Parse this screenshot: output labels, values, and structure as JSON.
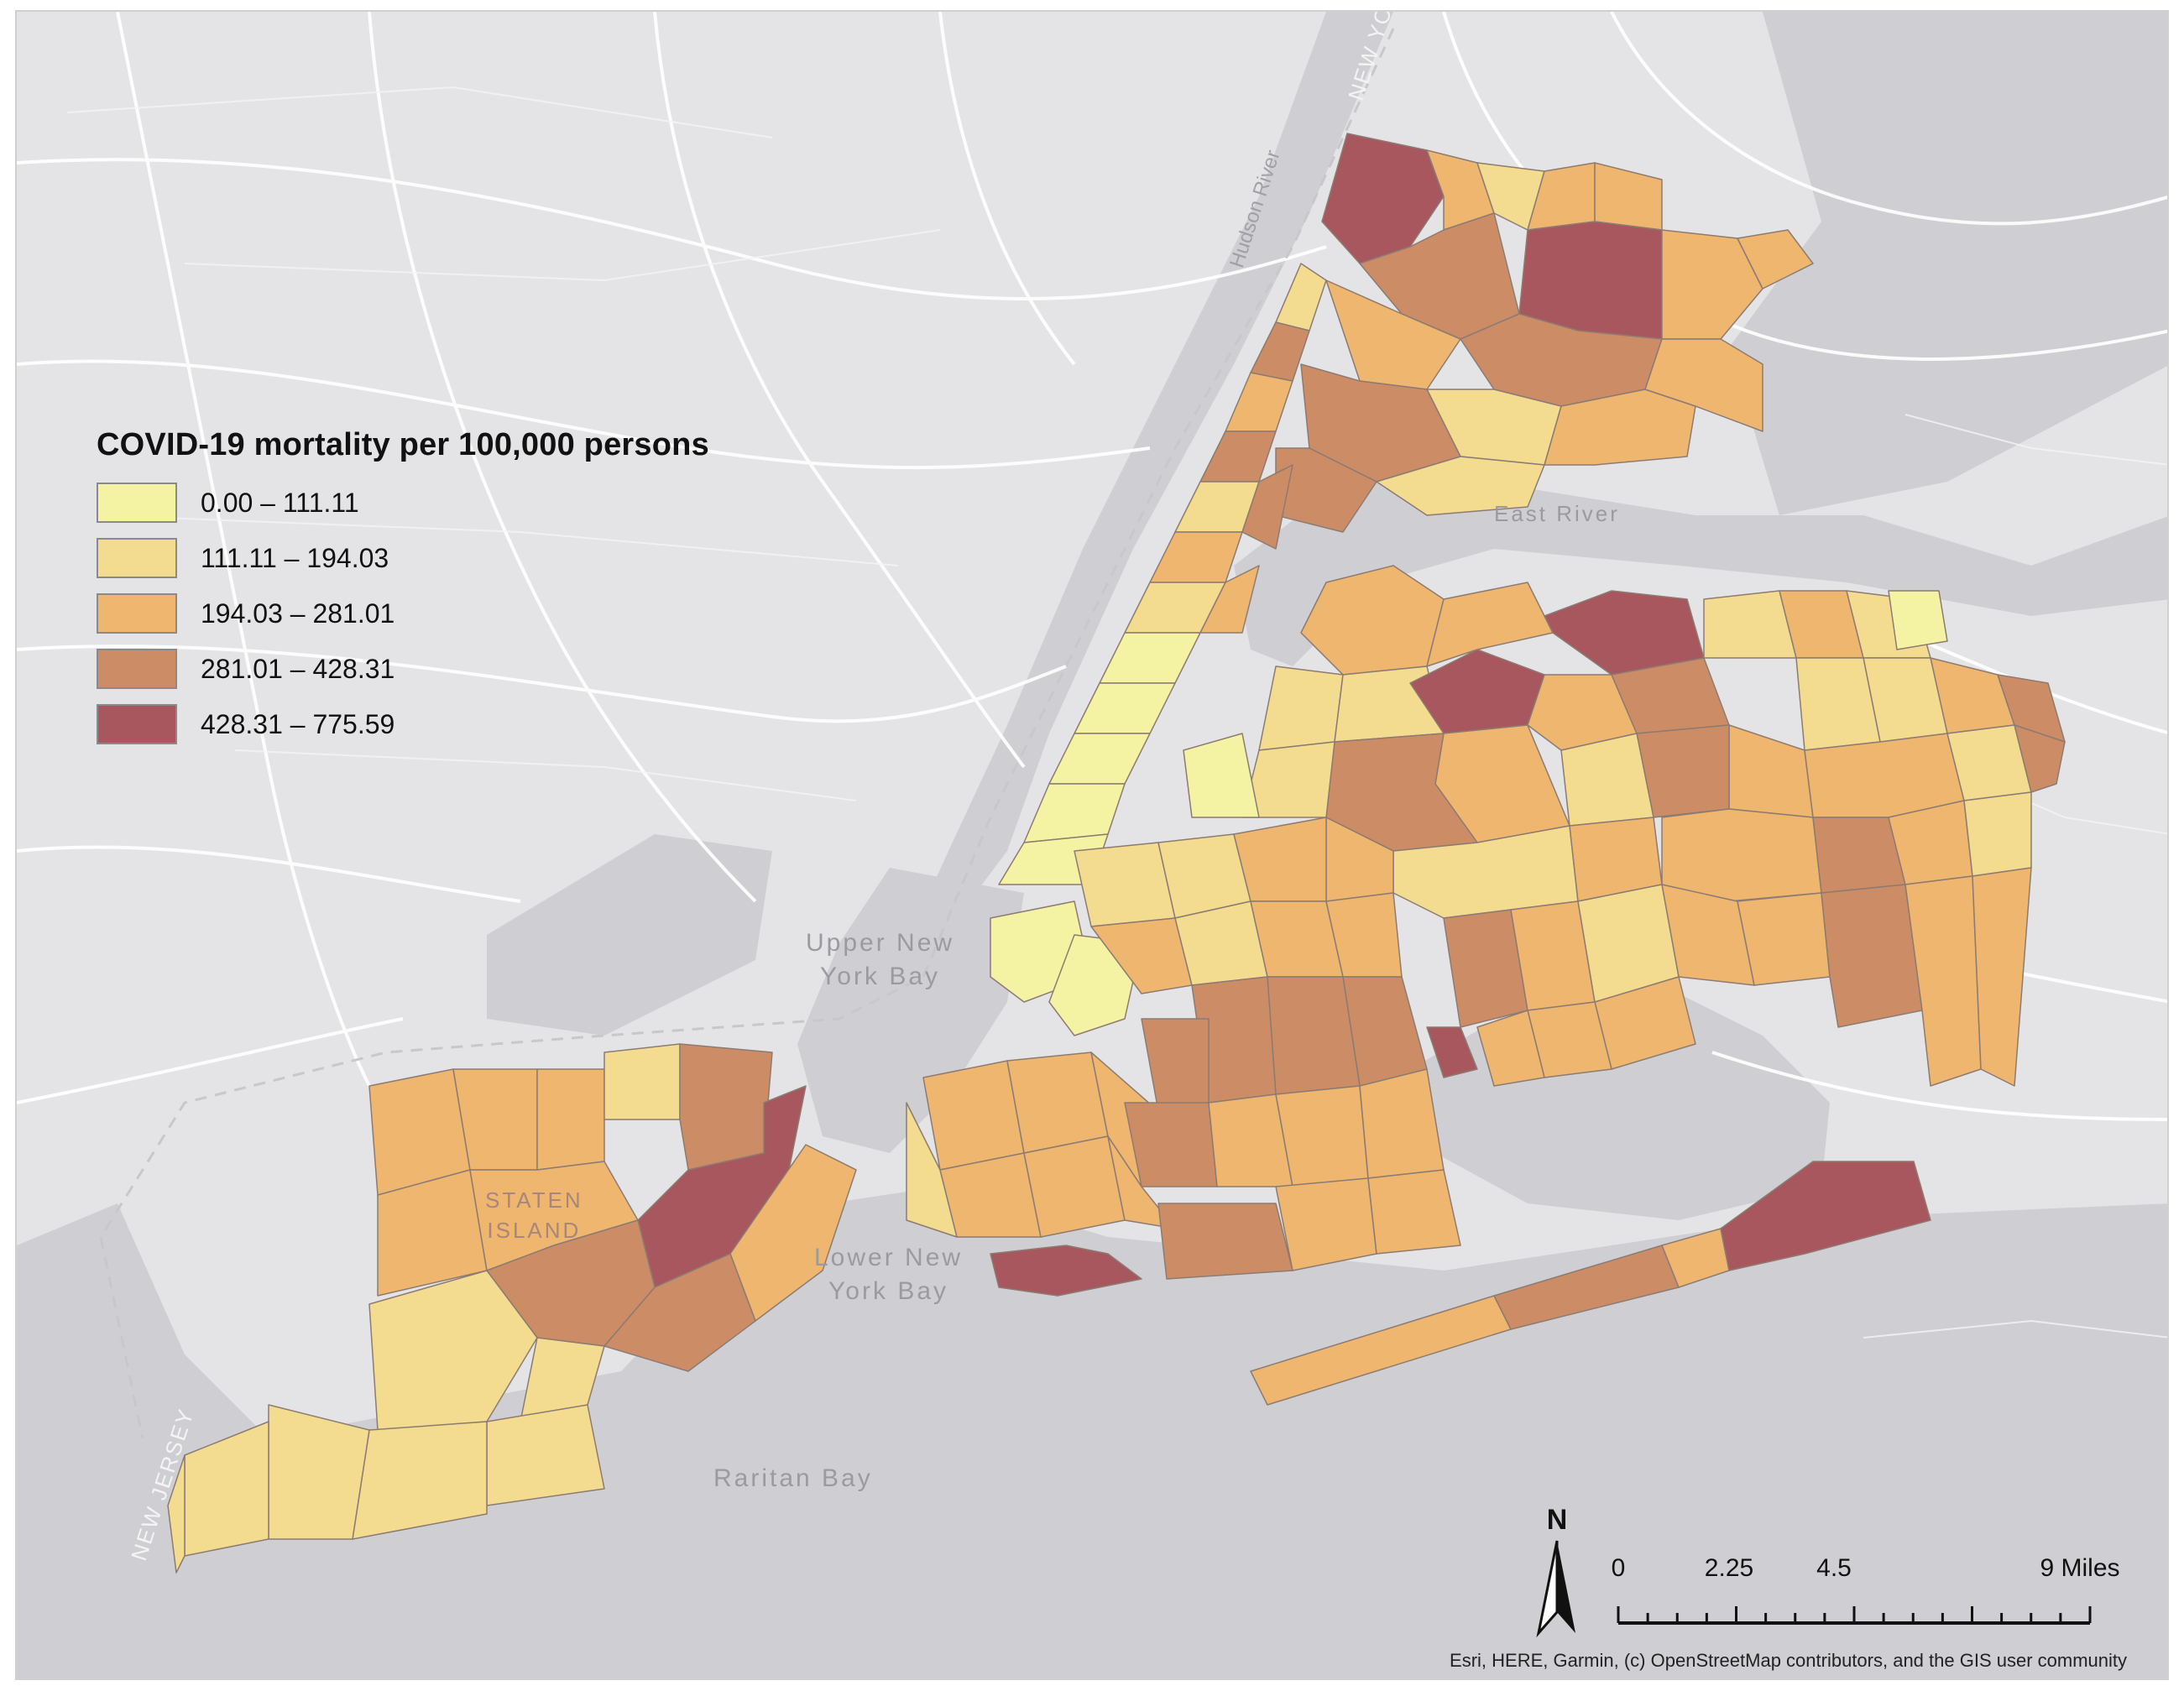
{
  "legend": {
    "title": "COVID-19 mortality per 100,000 persons",
    "classes": [
      {
        "label": "0.00 – 111.11",
        "color": "#f4f3a4"
      },
      {
        "label": "111.11 – 194.03",
        "color": "#f3dc8f"
      },
      {
        "label": "194.03 – 281.01",
        "color": "#eeb66e"
      },
      {
        "label": "281.01 – 428.31",
        "color": "#cc8c66"
      },
      {
        "label": "428.31 – 775.59",
        "color": "#a8575e"
      }
    ]
  },
  "labels": {
    "upper_bay": "Upper New\nYork Bay",
    "lower_bay": "Lower New\nYork Bay",
    "raritan_bay": "Raritan Bay",
    "east_river": "East River",
    "hudson_river": "Hudson River",
    "staten_island": "STATEN\nISLAND",
    "new_jersey": "NEW JERSEY",
    "new_york": "NEW YORK"
  },
  "scale_bar": {
    "ticks": [
      "0",
      "2.25",
      "4.5",
      "9 Miles"
    ]
  },
  "north_arrow": {
    "letter": "N"
  },
  "attribution": "Esri, HERE, Garmin, (c) OpenStreetMap contributors, and the GIS user community",
  "colors": {
    "land": "#e4e4e6",
    "water": "#cfcfd3",
    "roads": "#ffffff",
    "no_data": "#eeeeee"
  }
}
